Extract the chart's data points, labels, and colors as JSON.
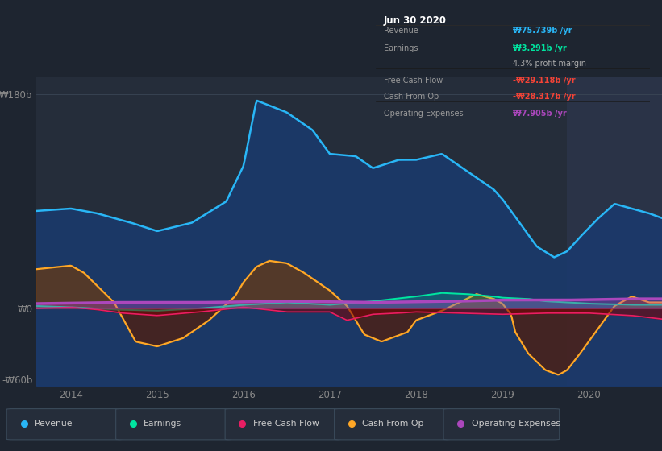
{
  "bg_color": "#1e2530",
  "plot_bg_color": "#252d3a",
  "highlight_bg": "#2a3347",
  "xlim": [
    2013.6,
    2020.85
  ],
  "ylim": [
    -65,
    195
  ],
  "yticks": [
    -60,
    0,
    180
  ],
  "ytick_labels": [
    "-₩60b",
    "₩0",
    "₩180b"
  ],
  "xticks": [
    2014,
    2015,
    2016,
    2017,
    2018,
    2019,
    2020
  ],
  "highlight_start": 2019.75,
  "series": {
    "revenue": {
      "color": "#29b6f6",
      "fill_color": "#1a3a6e",
      "fill_alpha": 0.85,
      "label": "Revenue"
    },
    "earnings": {
      "color": "#00e5a0",
      "fill_color": "#00e5a0",
      "fill_alpha": 0.2,
      "label": "Earnings"
    },
    "fcf": {
      "color": "#e91e63",
      "fill_color": "#7b0000",
      "fill_alpha": 0.55,
      "label": "Free Cash Flow"
    },
    "cashfromop": {
      "color": "#ffa726",
      "fill_color": "#5a2d0c",
      "fill_alpha": 0.6,
      "label": "Cash From Op"
    },
    "opex": {
      "color": "#ab47bc",
      "fill_color": "#ab47bc",
      "fill_alpha": 0.35,
      "label": "Operating Expenses"
    }
  },
  "legend": [
    {
      "label": "Revenue",
      "color": "#29b6f6"
    },
    {
      "label": "Earnings",
      "color": "#00e5a0"
    },
    {
      "label": "Free Cash Flow",
      "color": "#e91e63"
    },
    {
      "label": "Cash From Op",
      "color": "#ffa726"
    },
    {
      "label": "Operating Expenses",
      "color": "#ab47bc"
    }
  ],
  "tooltip": {
    "date": "Jun 30 2020",
    "rows": [
      {
        "label": "Revenue",
        "value": "₩75.739b /yr",
        "lc": "#999999",
        "vc": "#29b6f6"
      },
      {
        "label": "Earnings",
        "value": "₩3.291b /yr",
        "lc": "#999999",
        "vc": "#00e5a0"
      },
      {
        "label": "",
        "value": "4.3% profit margin",
        "lc": "#999999",
        "vc": "#aaaaaa"
      },
      {
        "label": "Free Cash Flow",
        "value": "-₩29.118b /yr",
        "lc": "#999999",
        "vc": "#f44336"
      },
      {
        "label": "Cash From Op",
        "value": "-₩28.317b /yr",
        "lc": "#999999",
        "vc": "#f44336"
      },
      {
        "label": "Operating Expenses",
        "value": "₩7.905b /yr",
        "lc": "#999999",
        "vc": "#ab47bc"
      }
    ]
  }
}
